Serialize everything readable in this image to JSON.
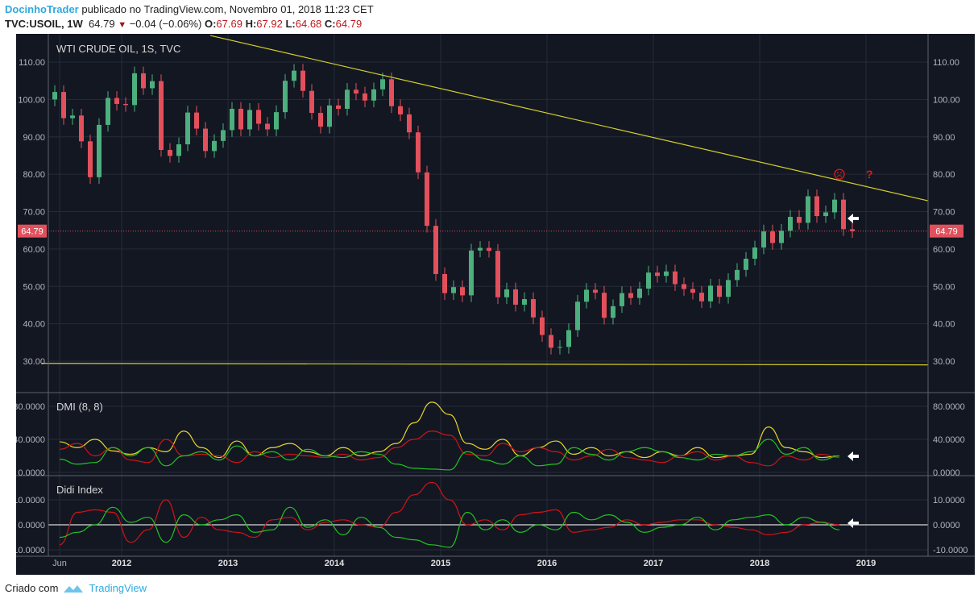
{
  "header": {
    "author": "DocinhoTrader",
    "published_text": "publicado no TradingView.com, Novembro 01, 2018 11:23 CET",
    "symbol": "TVC:USOIL, 1W",
    "last": "64.79",
    "change": "−0.04 (−0.06%)",
    "o_label": "O:",
    "o": "67.69",
    "h_label": "H:",
    "h": "67.92",
    "l_label": "L:",
    "l": "64.68",
    "c_label": "C:",
    "c": "64.79"
  },
  "footer": {
    "made_with": "Criado com",
    "brand": "TradingView"
  },
  "colors": {
    "background": "#131722",
    "up": "#4caf7d",
    "down": "#e2505c",
    "trendline": "#d4cf2a",
    "adx": "#e8d62a",
    "minus_di": "#d0141a",
    "plus_di": "#22c322",
    "didi_zero": "#d8d8d8"
  },
  "chart_data": [
    {
      "type": "candlestick",
      "title": "WTI CRUDE OIL, 1S, TVC",
      "interval_note": "weekly chart; monthly closes approximated",
      "ylim": [
        25,
        118
      ],
      "y_ticks": [
        "30.00",
        "40.00",
        "50.00",
        "60.00",
        "70.00",
        "80.00",
        "90.00",
        "100.00",
        "110.00"
      ],
      "x_ticks": [
        "Jun",
        "2012",
        "2013",
        "2014",
        "2015",
        "2016",
        "2017",
        "2018",
        "2019"
      ],
      "last_price_label": "64.79",
      "start": "2011-05",
      "monthly_close": [
        102,
        95,
        95.7,
        88.8,
        79.2,
        93.2,
        100.4,
        98.8,
        98.5,
        107,
        103,
        104.9,
        86.5,
        84.9,
        88,
        96.5,
        92.2,
        86.2,
        88.9,
        91.8,
        97.5,
        92,
        97.2,
        93.5,
        92,
        96.6,
        105,
        107.7,
        102.3,
        96.4,
        92.7,
        98.4,
        97.5,
        102.6,
        101.6,
        99.7,
        102.7,
        105.4,
        98.2,
        96,
        91.2,
        80.5,
        66.2,
        53.3,
        48.2,
        49.8,
        47.6,
        59.6,
        60.3,
        59.5,
        47.1,
        49.2,
        45.1,
        46.6,
        41.7,
        37,
        33.6,
        33.8,
        38.3,
        45.9,
        49.1,
        48.3,
        41.6,
        44.7,
        48.2,
        46.9,
        49.4,
        53.7,
        52.8,
        54,
        50.6,
        49.3,
        48.3,
        46,
        50.2,
        47.2,
        51.7,
        54.4,
        57.4,
        60.4,
        64.7,
        61.6,
        64.9,
        68.6,
        67,
        74.1,
        68.8,
        69.8,
        73.2,
        65.3,
        64.79
      ],
      "trendlines": [
        {
          "from": [
            "2012-11",
            117.1
          ],
          "to": [
            "2019-08",
            72.9
          ]
        },
        {
          "from": [
            "2011-04",
            29.4
          ],
          "to": [
            "2019-08",
            29.0
          ]
        }
      ],
      "annotations": [
        {
          "kind": "sad-face",
          "date": "2018-10",
          "price": 80
        },
        {
          "kind": "question-mark",
          "text": "?",
          "date": "2019-01",
          "price": 80
        },
        {
          "kind": "arrow-left",
          "date": "2018-11",
          "price": 67.5
        }
      ]
    },
    {
      "type": "line",
      "title": "DMI (8, 8)",
      "ylim": [
        0,
        95
      ],
      "y_ticks": [
        "0.0000",
        "40.0000",
        "80.0000"
      ],
      "start": "2011-06",
      "step_months": 2,
      "series": [
        {
          "key": "adx",
          "values": [
            37,
            30,
            40,
            26,
            22,
            30,
            25,
            50,
            30,
            18,
            38,
            20,
            30,
            35,
            25,
            20,
            30,
            20,
            25,
            35,
            60,
            85,
            70,
            35,
            28,
            40,
            20,
            30,
            38,
            22,
            30,
            20,
            25,
            18,
            25,
            20,
            30,
            18,
            20,
            22,
            55,
            30,
            25,
            18,
            20
          ]
        },
        {
          "key": "minus_di",
          "values": [
            28,
            35,
            20,
            30,
            15,
            12,
            40,
            20,
            22,
            20,
            12,
            25,
            18,
            22,
            20,
            18,
            22,
            15,
            18,
            30,
            40,
            50,
            45,
            22,
            20,
            35,
            25,
            30,
            25,
            15,
            20,
            28,
            18,
            15,
            12,
            20,
            25,
            15,
            20,
            12,
            8,
            20,
            15,
            22,
            18
          ]
        },
        {
          "key": "plus_di",
          "values": [
            16,
            10,
            12,
            30,
            20,
            30,
            8,
            20,
            25,
            15,
            32,
            20,
            25,
            15,
            28,
            20,
            18,
            25,
            22,
            10,
            5,
            4,
            3,
            25,
            15,
            10,
            20,
            8,
            10,
            30,
            22,
            15,
            25,
            30,
            25,
            18,
            15,
            22,
            20,
            25,
            40,
            22,
            30,
            15,
            20
          ]
        }
      ]
    },
    {
      "type": "line",
      "title": "Didi Index",
      "ylim": [
        -12,
        19
      ],
      "y_ticks": [
        "-10.0000",
        "0.0000",
        "10.0000"
      ],
      "start": "2011-06",
      "step_months": 2,
      "series": [
        {
          "key": "red",
          "values": [
            -8,
            5,
            6,
            5,
            -7,
            -2,
            10,
            -5,
            3,
            -2,
            -3,
            -5,
            2,
            3,
            -2,
            1,
            2,
            0,
            -1,
            5,
            12,
            17,
            10,
            0,
            2,
            -2,
            4,
            5,
            6,
            -3,
            -2,
            -1,
            2,
            0,
            1,
            2,
            2,
            0,
            -1,
            -2,
            -4,
            -3,
            0,
            1,
            0
          ]
        },
        {
          "key": "green",
          "values": [
            -5,
            -3,
            0,
            7,
            1,
            3,
            -7,
            4,
            0,
            2,
            4,
            -3,
            -2,
            7,
            -1,
            2,
            -4,
            3,
            -1,
            -5,
            -6,
            -8,
            -9,
            5,
            -2,
            2,
            -3,
            0,
            -2,
            5,
            2,
            4,
            1,
            -3,
            -1,
            0,
            3,
            -2,
            2,
            3,
            4,
            0,
            3,
            1,
            -2
          ]
        }
      ]
    }
  ]
}
